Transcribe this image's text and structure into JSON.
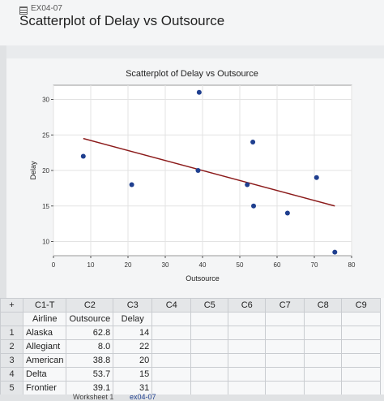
{
  "window": {
    "doc_name": "EX04-07",
    "page_title": "Scatterplot of Delay vs Outsource"
  },
  "chart_data": {
    "type": "scatter",
    "title": "Scatterplot of Delay vs Outsource",
    "xlabel": "Outsource",
    "ylabel": "Delay",
    "xlim": [
      0,
      80
    ],
    "ylim": [
      8,
      32
    ],
    "xticks": [
      "0",
      "10",
      "20",
      "30",
      "40",
      "50",
      "60",
      "70",
      "80"
    ],
    "yticks": [
      "10",
      "15",
      "20",
      "25",
      "30"
    ],
    "grid": true,
    "point_color": "#1f3f8f",
    "line_color": "#8b1a1a",
    "points": [
      {
        "x": 62.8,
        "y": 14
      },
      {
        "x": 8.0,
        "y": 22
      },
      {
        "x": 38.8,
        "y": 20
      },
      {
        "x": 53.7,
        "y": 15
      },
      {
        "x": 39.1,
        "y": 31
      },
      {
        "x": 21.0,
        "y": 18
      },
      {
        "x": 53.5,
        "y": 24
      },
      {
        "x": 52.0,
        "y": 18
      },
      {
        "x": 70.6,
        "y": 19
      },
      {
        "x": 75.5,
        "y": 8.5
      }
    ],
    "fit_line": [
      {
        "x": 8.0,
        "y": 24.5
      },
      {
        "x": 75.5,
        "y": 15
      }
    ]
  },
  "worksheet": {
    "column_ids": [
      "C1-T",
      "C2",
      "C3",
      "C4",
      "C5",
      "C6",
      "C7",
      "C8",
      "C9"
    ],
    "column_names": [
      "Airline",
      "Outsource",
      "Delay",
      "",
      "",
      "",
      "",
      "",
      ""
    ],
    "rows": [
      {
        "n": "1",
        "airline": "Alaska",
        "outsource": "62.8",
        "delay": "14"
      },
      {
        "n": "2",
        "airline": "Allegiant",
        "outsource": "8.0",
        "delay": "22"
      },
      {
        "n": "3",
        "airline": "American",
        "outsource": "38.8",
        "delay": "20"
      },
      {
        "n": "4",
        "airline": "Delta",
        "outsource": "53.7",
        "delay": "15"
      },
      {
        "n": "5",
        "airline": "Frontier",
        "outsource": "39.1",
        "delay": "31"
      }
    ]
  },
  "tabs": {
    "sheet": "Worksheet 1",
    "doc": "ex04-07"
  }
}
